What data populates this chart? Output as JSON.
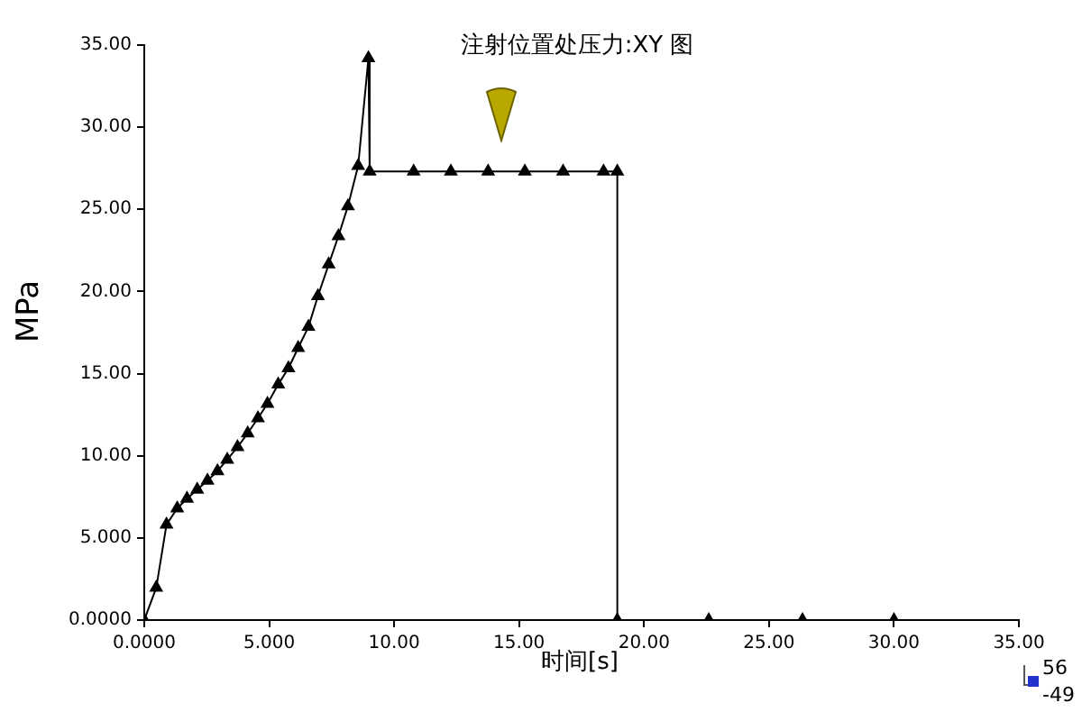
{
  "chart_data": {
    "type": "line",
    "title": "注射位置处压力:XY 图",
    "xlabel": "时间[s]",
    "ylabel": "MPa",
    "x": [
      0,
      0.48,
      0.89,
      1.32,
      1.71,
      2.12,
      2.53,
      2.93,
      3.32,
      3.73,
      4.14,
      4.55,
      4.93,
      5.36,
      5.77,
      6.16,
      6.57,
      6.95,
      7.38,
      7.77,
      8.15,
      8.56,
      8.97,
      9.02,
      10.78,
      12.27,
      13.76,
      15.23,
      16.76,
      18.38,
      18.93,
      18.93,
      22.59,
      26.34,
      30.0
    ],
    "series": [
      {
        "color": "#000000",
        "values": [
          0,
          1.97,
          5.81,
          6.8,
          7.39,
          7.94,
          8.49,
          9.07,
          9.77,
          10.53,
          11.37,
          12.29,
          13.17,
          14.34,
          15.33,
          16.57,
          17.85,
          19.72,
          21.65,
          23.37,
          25.2,
          27.65,
          34.2,
          27.3,
          27.3,
          27.3,
          27.3,
          27.3,
          27.3,
          27.3,
          27.3,
          0,
          0,
          0,
          0
        ]
      }
    ],
    "xlim": [
      0,
      35
    ],
    "xticks": [
      {
        "value": 0,
        "label": "0.0000"
      },
      {
        "value": 5,
        "label": "5.000"
      },
      {
        "value": 10,
        "label": "10.00"
      },
      {
        "value": 15,
        "label": "15.00"
      },
      {
        "value": 20,
        "label": "20.00"
      },
      {
        "value": 25,
        "label": "25.00"
      },
      {
        "value": 30,
        "label": "30.00"
      },
      {
        "value": 35,
        "label": "35.00"
      }
    ],
    "ylim": [
      0,
      35
    ],
    "yticks": [
      {
        "value": 0,
        "label": "0.0000"
      },
      {
        "value": 5,
        "label": "5.000"
      },
      {
        "value": 10,
        "label": "10.00"
      },
      {
        "value": 15,
        "label": "15.00"
      },
      {
        "value": 20,
        "label": "20.00"
      },
      {
        "value": 25,
        "label": "25.00"
      },
      {
        "value": 30,
        "label": "30.00"
      },
      {
        "value": 35,
        "label": "35.00"
      }
    ],
    "grid": false,
    "legend": false,
    "marker": "triangle",
    "line_style": "solid",
    "annotations": [
      "56",
      "-49"
    ]
  }
}
